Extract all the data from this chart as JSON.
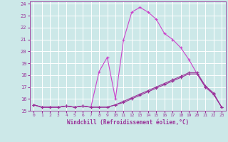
{
  "xlabel": "Windchill (Refroidissement éolien,°C)",
  "ylabel": "",
  "xlim": [
    -0.5,
    23.5
  ],
  "ylim": [
    15.0,
    24.2
  ],
  "yticks": [
    15,
    16,
    17,
    18,
    19,
    20,
    21,
    22,
    23,
    24
  ],
  "xticks": [
    0,
    1,
    2,
    3,
    4,
    5,
    6,
    7,
    8,
    9,
    10,
    11,
    12,
    13,
    14,
    15,
    16,
    17,
    18,
    19,
    20,
    21,
    22,
    23
  ],
  "background_color": "#cce8e8",
  "grid_color": "#ffffff",
  "line_color": "#993399",
  "line_color2": "#cc44cc",
  "series1": [
    15.5,
    15.3,
    15.3,
    15.3,
    15.4,
    15.3,
    15.4,
    15.3,
    18.3,
    19.5,
    16.0,
    21.0,
    23.3,
    23.7,
    23.3,
    22.7,
    21.5,
    21.0,
    20.3,
    19.3,
    18.1,
    17.0,
    16.4,
    15.3
  ],
  "series2": [
    15.5,
    15.3,
    15.3,
    15.3,
    15.4,
    15.3,
    15.4,
    15.3,
    15.3,
    15.3,
    15.5,
    15.7,
    16.0,
    16.3,
    16.6,
    16.9,
    17.2,
    17.5,
    17.8,
    18.1,
    18.1,
    17.0,
    16.4,
    15.3
  ],
  "series3": [
    15.5,
    15.3,
    15.3,
    15.3,
    15.4,
    15.3,
    15.4,
    15.3,
    15.3,
    15.3,
    15.5,
    15.8,
    16.1,
    16.4,
    16.7,
    17.0,
    17.3,
    17.6,
    17.9,
    18.2,
    18.2,
    17.1,
    16.5,
    15.3
  ]
}
